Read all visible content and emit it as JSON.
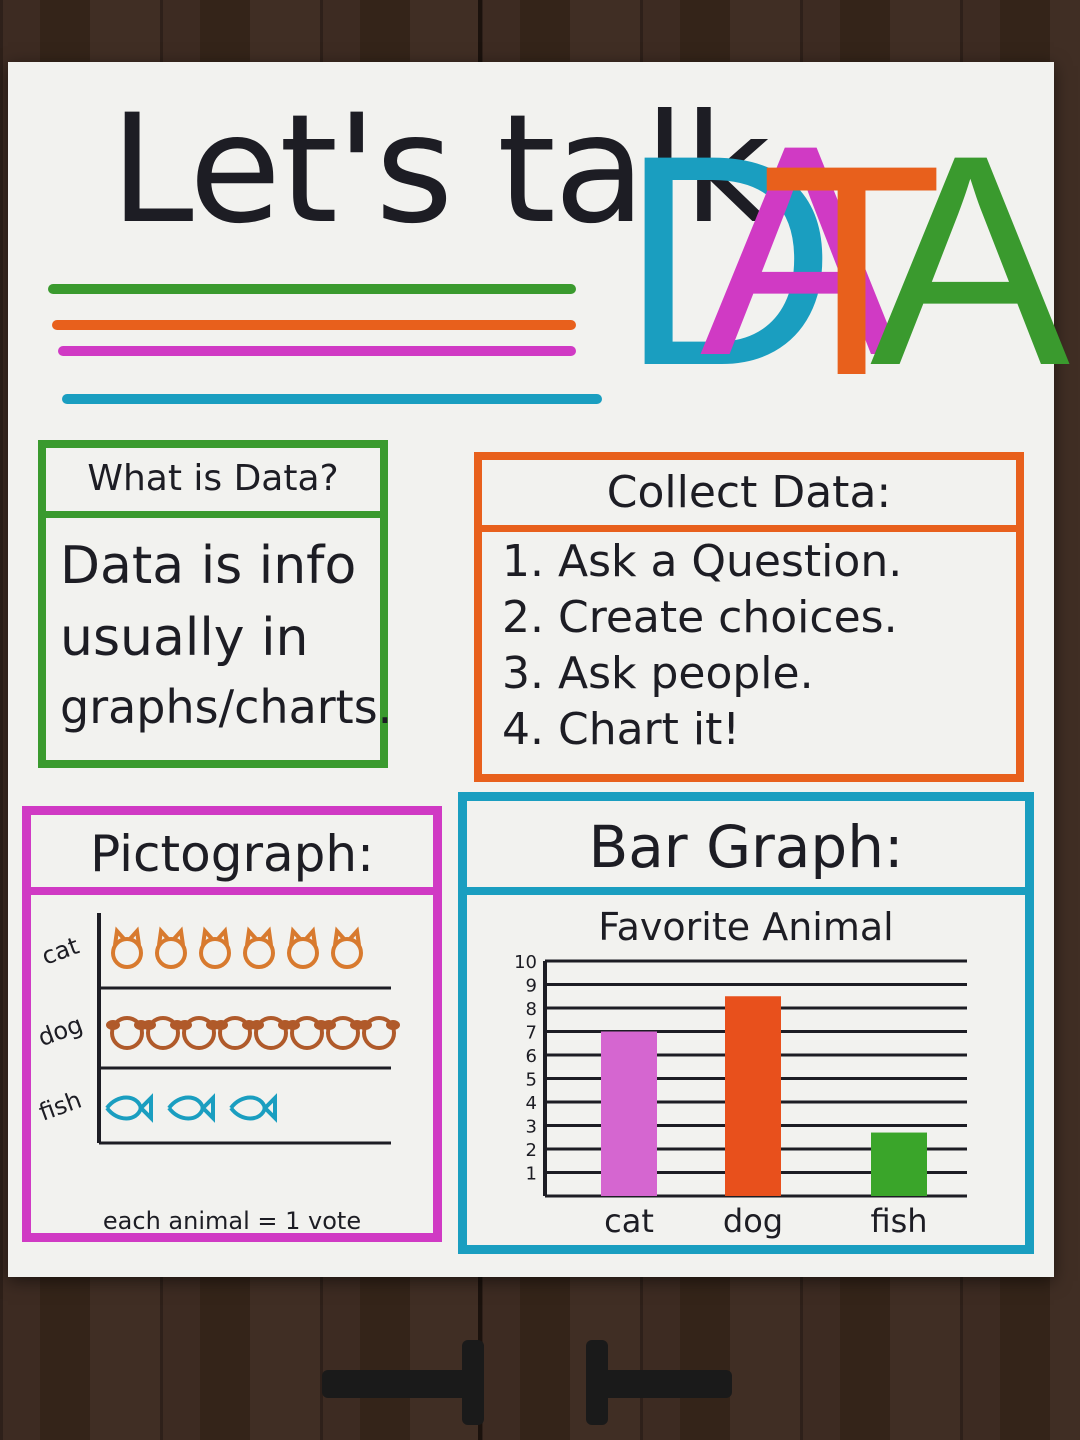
{
  "title": {
    "line": "Let's talk",
    "big": [
      "D",
      "A",
      "T",
      "A"
    ]
  },
  "colors": {
    "green": "#3a9a2e",
    "orange": "#e8601c",
    "magenta": "#d03ac4",
    "blue": "#1a9ec0",
    "ink": "#1d1d24"
  },
  "what_is_data": {
    "heading": "What is Data?",
    "lines": [
      "Data is info",
      "usually in",
      "graphs/charts."
    ]
  },
  "collect_data": {
    "heading": "Collect Data:",
    "steps": [
      "1. Ask a Question.",
      "2. Create choices.",
      "3. Ask people.",
      "4. Chart it!"
    ]
  },
  "pictograph": {
    "heading": "Pictograph:",
    "rows": [
      {
        "label": "cat",
        "count": 6,
        "icon": "cat-face-icon"
      },
      {
        "label": "dog",
        "count": 8,
        "icon": "dog-face-icon"
      },
      {
        "label": "fish",
        "count": 3,
        "icon": "fish-icon"
      }
    ],
    "key": "each animal = 1 vote"
  },
  "chart_data": {
    "type": "bar",
    "title": "Favorite Animal",
    "categories": [
      "cat",
      "dog",
      "fish"
    ],
    "values": [
      7,
      8.5,
      2.7
    ],
    "ylim": [
      0,
      10
    ],
    "yticks": [
      1,
      2,
      3,
      4,
      5,
      6,
      7,
      8,
      9,
      10
    ],
    "colors": [
      "#d566d0",
      "#e8501c",
      "#3aa52a"
    ],
    "grid": true
  },
  "bar_graph": {
    "heading": "Bar Graph:"
  }
}
